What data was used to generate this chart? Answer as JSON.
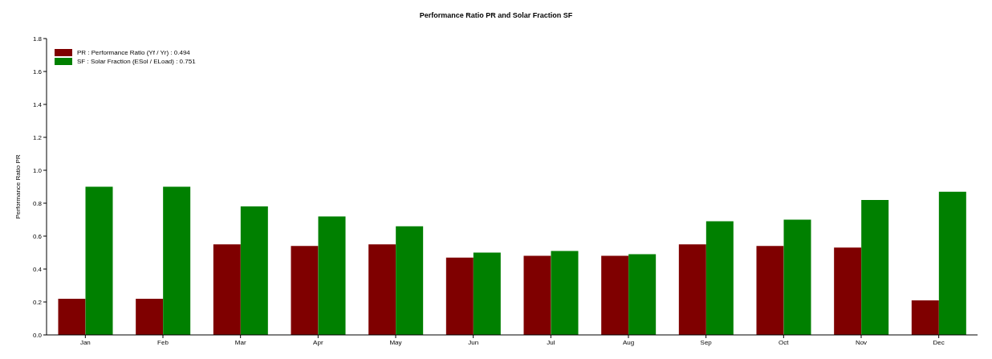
{
  "chart_data": {
    "type": "bar",
    "title": "Performance Ratio PR  and Solar Fraction SF",
    "ylabel": "Performance Ratio PR",
    "categories": [
      "Jan",
      "Feb",
      "Mar",
      "Apr",
      "May",
      "Jun",
      "Jul",
      "Aug",
      "Sep",
      "Oct",
      "Nov",
      "Dec"
    ],
    "series": [
      {
        "name": "PR : Performance Ratio (Yf / Yr) :   0.494",
        "color": "#7f0000",
        "values": [
          0.22,
          0.22,
          0.55,
          0.54,
          0.55,
          0.47,
          0.48,
          0.48,
          0.55,
          0.54,
          0.53,
          0.21
        ]
      },
      {
        "name": "SF : Solar Fraction (ESol / ELoad) :   0.751",
        "color": "#008000",
        "values": [
          0.9,
          0.9,
          0.78,
          0.72,
          0.66,
          0.5,
          0.51,
          0.49,
          0.69,
          0.7,
          0.82,
          0.87
        ]
      }
    ],
    "ylim": [
      0,
      1.8
    ],
    "yticks": [
      {
        "value": 0,
        "label": "0.0"
      },
      {
        "value": 0.2,
        "label": "0.2"
      },
      {
        "value": 0.4,
        "label": "0.4"
      },
      {
        "value": 0.6,
        "label": "0.6"
      },
      {
        "value": 0.8,
        "label": "0.8"
      },
      {
        "value": 1.0,
        "label": "1.0"
      },
      {
        "value": 1.2,
        "label": "1.2"
      },
      {
        "value": 1.4,
        "label": "1.4"
      },
      {
        "value": 1.6,
        "label": "1.6"
      },
      {
        "value": 1.8,
        "label": "1.8"
      }
    ],
    "grid": false,
    "legend": "top left"
  }
}
